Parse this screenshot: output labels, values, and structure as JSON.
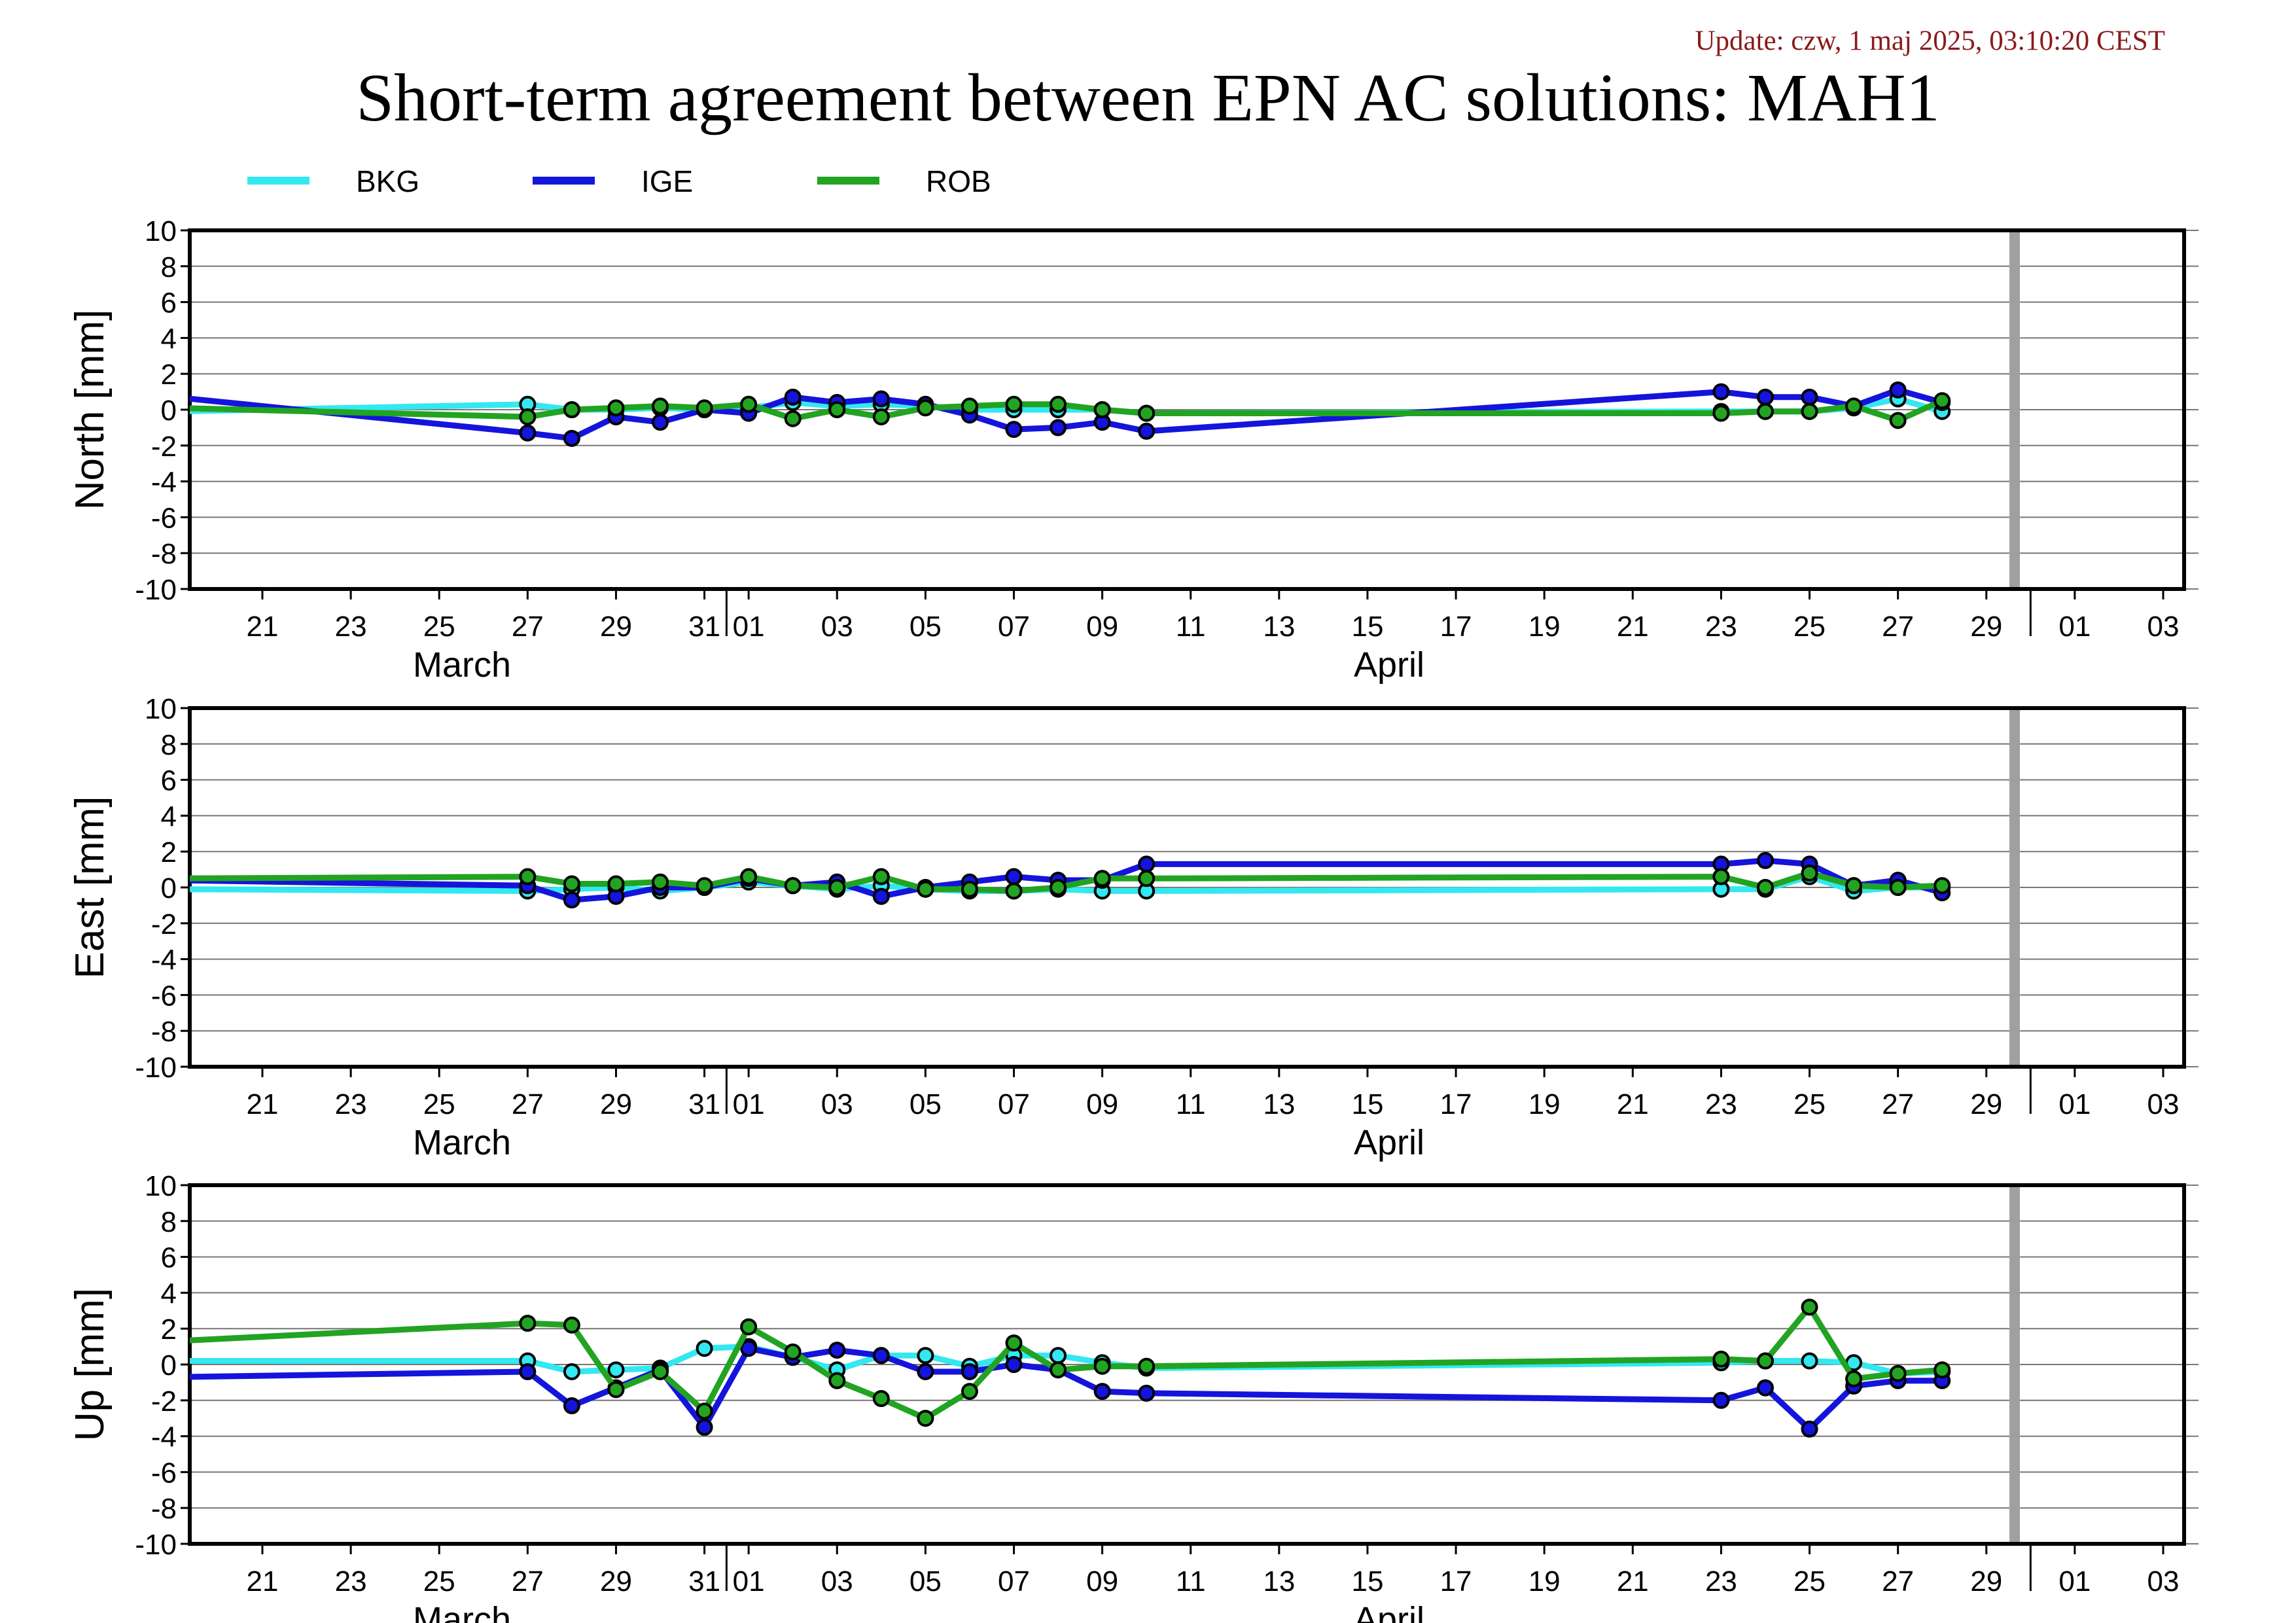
{
  "update_text": "Update: czw, 1 maj 2025, 03:10:20 CEST",
  "title": "Short-term agreement between EPN AC solutions: MAH1",
  "legend": [
    {
      "name": "BKG",
      "color": "#33e8f0"
    },
    {
      "name": "IGE",
      "color": "#1414dc"
    },
    {
      "name": "ROB",
      "color": "#22a322"
    }
  ],
  "x_axis": {
    "tick_labels": [
      "21",
      "23",
      "25",
      "27",
      "29",
      "31",
      "01",
      "03",
      "05",
      "07",
      "09",
      "11",
      "13",
      "15",
      "17",
      "19",
      "21",
      "23",
      "25",
      "27",
      "29",
      "01",
      "03"
    ],
    "month_labels": [
      "March",
      "April"
    ],
    "gap_marker_date": "Apr 29-30"
  },
  "chart_data": [
    {
      "type": "line",
      "ylabel": "North [mm]",
      "ylim": [
        -10,
        10
      ],
      "yticks": [
        10,
        8,
        6,
        4,
        2,
        0,
        -2,
        -4,
        -6,
        -8,
        -10
      ],
      "x": [
        "Mar 19",
        "Mar 27",
        "Mar 28",
        "Mar 29",
        "Mar 30",
        "Mar 31",
        "Apr 01",
        "Apr 02",
        "Apr 03",
        "Apr 04",
        "Apr 05",
        "Apr 06",
        "Apr 07",
        "Apr 08",
        "Apr 09",
        "Apr 10",
        "Apr 23",
        "Apr 24",
        "Apr 25",
        "Apr 26",
        "Apr 27",
        "Apr 28"
      ],
      "series": [
        {
          "name": "BKG",
          "values": [
            -0.1,
            0.3,
            0.0,
            0.0,
            0.1,
            0.0,
            0.1,
            0.4,
            0.2,
            0.3,
            0.2,
            0.0,
            0.0,
            0.0,
            0.0,
            -0.2,
            -0.1,
            -0.1,
            -0.1,
            0.1,
            0.6,
            -0.1
          ]
        },
        {
          "name": "IGE",
          "values": [
            0.7,
            -1.3,
            -1.6,
            -0.4,
            -0.7,
            0.0,
            -0.2,
            0.7,
            0.4,
            0.6,
            0.3,
            -0.3,
            -1.1,
            -1.0,
            -0.7,
            -1.2,
            1.0,
            0.7,
            0.7,
            0.2,
            1.1,
            0.4
          ]
        },
        {
          "name": "ROB",
          "values": [
            0.1,
            -0.4,
            0.0,
            0.1,
            0.2,
            0.1,
            0.3,
            -0.5,
            0.0,
            -0.4,
            0.1,
            0.2,
            0.3,
            0.3,
            0.0,
            -0.2,
            -0.2,
            -0.1,
            -0.1,
            0.2,
            -0.6,
            0.5
          ]
        }
      ]
    },
    {
      "type": "line",
      "ylabel": "East [mm]",
      "ylim": [
        -10,
        10
      ],
      "yticks": [
        10,
        8,
        6,
        4,
        2,
        0,
        -2,
        -4,
        -6,
        -8,
        -10
      ],
      "x": [
        "Mar 19",
        "Mar 27",
        "Mar 28",
        "Mar 29",
        "Mar 30",
        "Mar 31",
        "Apr 01",
        "Apr 02",
        "Apr 03",
        "Apr 04",
        "Apr 05",
        "Apr 06",
        "Apr 07",
        "Apr 08",
        "Apr 09",
        "Apr 10",
        "Apr 23",
        "Apr 24",
        "Apr 25",
        "Apr 26",
        "Apr 27",
        "Apr 28"
      ],
      "series": [
        {
          "name": "BKG",
          "values": [
            -0.1,
            -0.2,
            -0.1,
            0.0,
            -0.2,
            0.0,
            0.3,
            0.1,
            -0.1,
            0.1,
            -0.1,
            -0.2,
            -0.2,
            -0.1,
            -0.2,
            -0.2,
            -0.1,
            -0.1,
            0.6,
            -0.2,
            0.0,
            0.0
          ]
        },
        {
          "name": "IGE",
          "values": [
            0.4,
            0.1,
            -0.7,
            -0.5,
            0.0,
            0.0,
            0.5,
            0.1,
            0.3,
            -0.5,
            0.0,
            0.3,
            0.6,
            0.4,
            0.4,
            1.3,
            1.3,
            1.5,
            1.3,
            0.1,
            0.4,
            -0.3
          ]
        },
        {
          "name": "ROB",
          "values": [
            0.5,
            0.6,
            0.2,
            0.2,
            0.3,
            0.1,
            0.6,
            0.1,
            0.0,
            0.6,
            -0.1,
            -0.1,
            -0.2,
            0.0,
            0.5,
            0.5,
            0.6,
            0.0,
            0.8,
            0.1,
            0.0,
            0.1
          ]
        }
      ]
    },
    {
      "type": "line",
      "ylabel": "Up [mm]",
      "ylim": [
        -10,
        10
      ],
      "yticks": [
        10,
        8,
        6,
        4,
        2,
        0,
        -2,
        -4,
        -6,
        -8,
        -10
      ],
      "x": [
        "Mar 19",
        "Mar 27",
        "Mar 28",
        "Mar 29",
        "Mar 30",
        "Mar 31",
        "Apr 01",
        "Apr 02",
        "Apr 03",
        "Apr 04",
        "Apr 05",
        "Apr 06",
        "Apr 07",
        "Apr 08",
        "Apr 09",
        "Apr 10",
        "Apr 23",
        "Apr 24",
        "Apr 25",
        "Apr 26",
        "Apr 27",
        "Apr 28"
      ],
      "series": [
        {
          "name": "BKG",
          "values": [
            0.2,
            0.2,
            -0.4,
            -0.3,
            -0.2,
            0.9,
            1.0,
            0.4,
            -0.3,
            0.5,
            0.5,
            -0.1,
            0.5,
            0.5,
            0.1,
            -0.2,
            0.1,
            0.2,
            0.2,
            0.1,
            -0.5,
            -0.4
          ]
        },
        {
          "name": "IGE",
          "values": [
            -0.7,
            -0.4,
            -2.3,
            -1.3,
            -0.3,
            -3.5,
            0.9,
            0.4,
            0.8,
            0.5,
            -0.4,
            -0.4,
            0.0,
            -0.3,
            -1.5,
            -1.6,
            -2.0,
            -1.3,
            -3.6,
            -1.2,
            -0.9,
            -0.9
          ]
        },
        {
          "name": "ROB",
          "values": [
            1.3,
            2.3,
            2.2,
            -1.4,
            -0.4,
            -2.6,
            2.1,
            0.7,
            -0.9,
            -1.9,
            -3.0,
            -1.5,
            1.2,
            -0.3,
            -0.1,
            -0.1,
            0.3,
            0.2,
            3.2,
            -0.8,
            -0.5,
            -0.3
          ]
        }
      ]
    }
  ]
}
